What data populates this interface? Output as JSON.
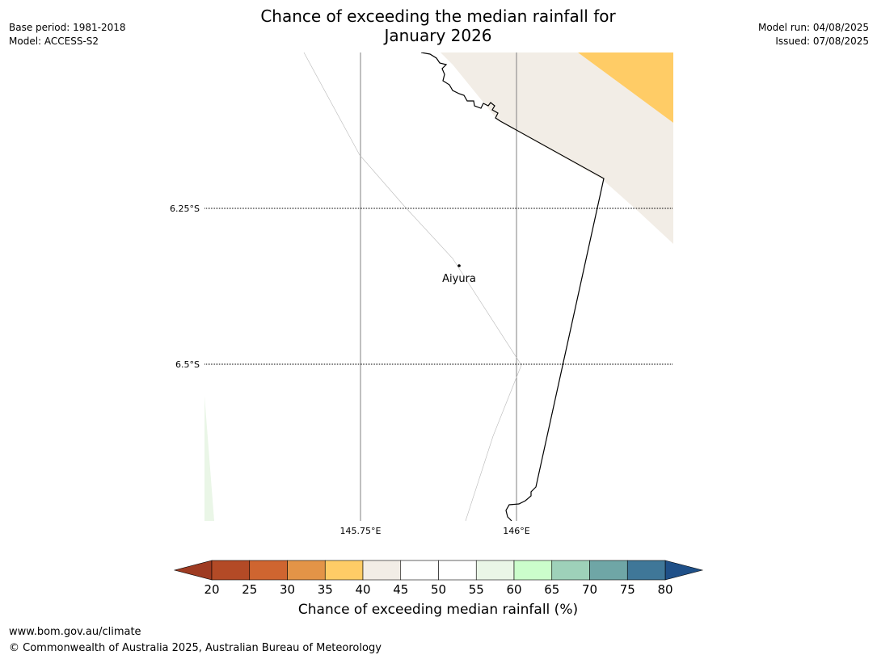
{
  "title": {
    "line1": "Chance of exceeding the median rainfall for",
    "line2": "January 2026"
  },
  "meta_left": {
    "base_period": "Base period: 1981-2018",
    "model": "Model: ACCESS-S2"
  },
  "meta_right": {
    "model_run": "Model run: 04/08/2025",
    "issued": "Issued: 07/08/2025"
  },
  "map": {
    "latitude_labels": [
      "6.25°S",
      "6.5°S"
    ],
    "longitude_labels": [
      "145.75°E",
      "146°E"
    ],
    "place_label": "Aiyura",
    "colors": {
      "land_bg": "#ffffff",
      "band_35_40": "#ffcc66",
      "band_40_45": "#f2ede6",
      "band_55_60": "#eaf6e7",
      "boundary": "#000000",
      "meridian": "#808080",
      "parallel": "#000000"
    }
  },
  "colorbar": {
    "ticks": [
      "20",
      "25",
      "30",
      "35",
      "40",
      "45",
      "50",
      "55",
      "60",
      "65",
      "70",
      "75",
      "80"
    ],
    "under_color": "#9e3b22",
    "over_color": "#1f5088",
    "colors": [
      "#b34a26",
      "#cf6530",
      "#e39447",
      "#ffcc66",
      "#f2ede6",
      "#ffffff",
      "#ffffff",
      "#eaf6e7",
      "#cbfdcb",
      "#9ed1b9",
      "#6fa6a6",
      "#3f7798"
    ],
    "label": "Chance of exceeding median rainfall (%)"
  },
  "footer": {
    "url": "www.bom.gov.au/climate",
    "copyright": "© Commonwealth of Australia 2025, Australian Bureau of Meteorology"
  }
}
